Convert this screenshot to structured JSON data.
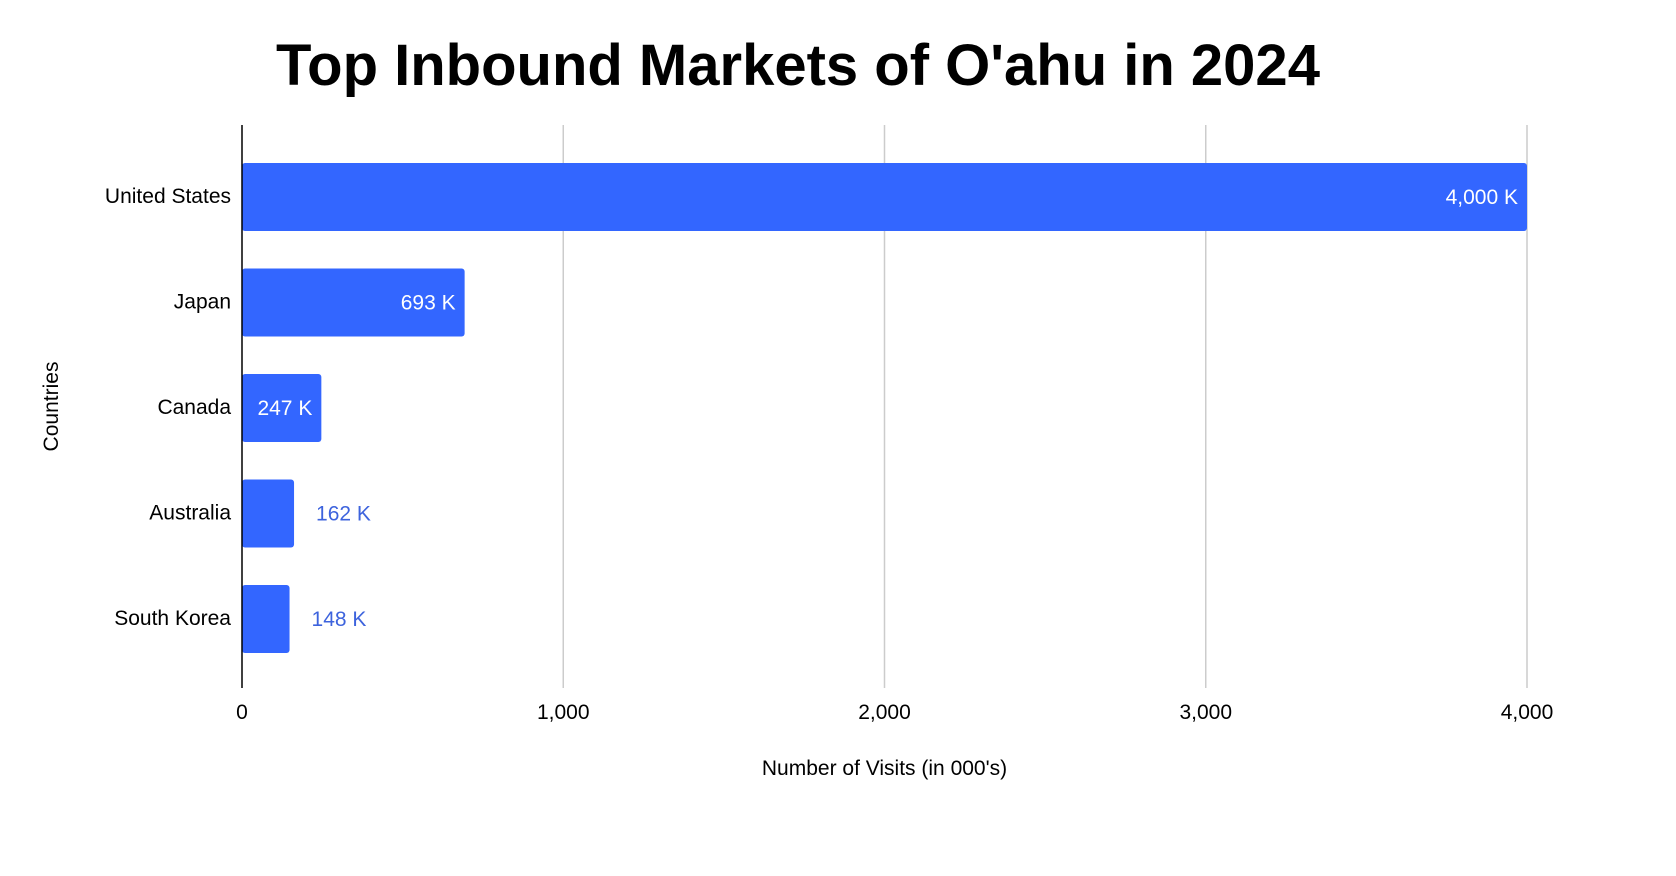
{
  "chart_data": {
    "type": "bar",
    "orientation": "horizontal",
    "title": "Top Inbound Markets of O'ahu in 2024",
    "xlabel": "Number of Visits (in 000's)",
    "ylabel": "Countries",
    "categories": [
      "United States",
      "Japan",
      "Canada",
      "Australia",
      "South Korea"
    ],
    "values": [
      4000,
      693,
      247,
      162,
      148
    ],
    "data_labels": [
      "4,000 K",
      "693 K",
      "247 K",
      "162 K",
      "148 K"
    ],
    "xlim": [
      0,
      4000
    ],
    "xticks": [
      0,
      1000,
      2000,
      3000,
      4000
    ],
    "xtick_labels": [
      "0",
      "1,000",
      "2,000",
      "3,000",
      "4,000"
    ],
    "grid": true,
    "bar_color": "#3366ff",
    "inside_label_color": "#ffffff",
    "outside_label_color": "#3d63dd",
    "grid_color": "#cccccc"
  }
}
